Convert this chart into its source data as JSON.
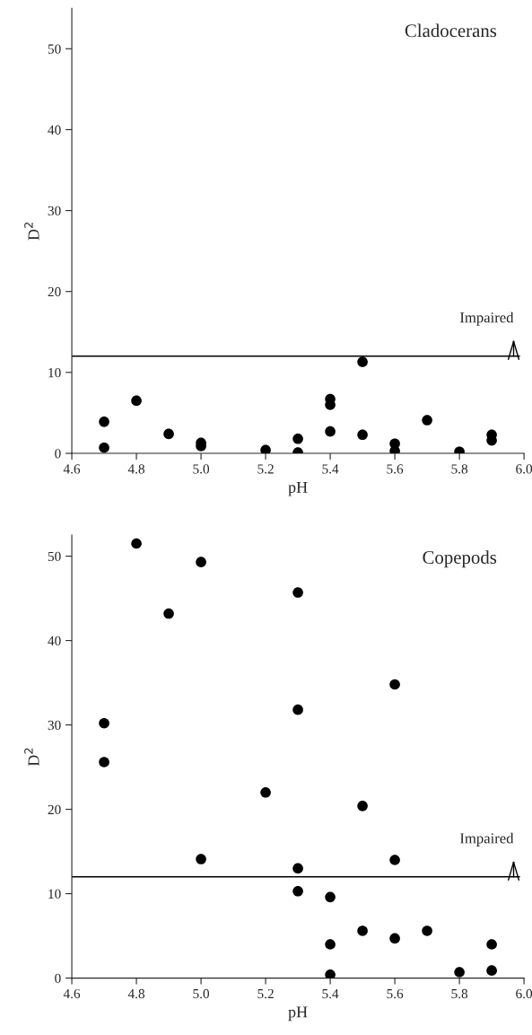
{
  "chart_data": [
    {
      "type": "scatter",
      "title": "Cladocerans",
      "xlabel": "pH",
      "ylabel": "D$^{2}$",
      "xlim": [
        4.6,
        6.0
      ],
      "xticks": [
        {
          "value": 4.6,
          "label": "4.6"
        },
        {
          "value": 4.8,
          "label": "4.8"
        },
        {
          "value": 5.0,
          "label": "5.0"
        },
        {
          "value": 5.2,
          "label": "5.2"
        },
        {
          "value": 5.4,
          "label": "5.4"
        },
        {
          "value": 5.6,
          "label": "5.6"
        },
        {
          "value": 5.8,
          "label": "5.8"
        },
        {
          "value": 6.0,
          "label": "6.0"
        }
      ],
      "ylim": [
        0,
        55
      ],
      "yticks": [
        0,
        10,
        20,
        30,
        40,
        50
      ],
      "marker": "circle",
      "grid": false,
      "legend": false,
      "series": [
        {
          "color": "#000000",
          "x": [
            4.7,
            4.7,
            4.8,
            4.9,
            5.0,
            5.0,
            5.2,
            5.3,
            5.3,
            5.4,
            5.4,
            5.4,
            5.5,
            5.5,
            5.6,
            5.6,
            5.7,
            5.8,
            5.9,
            5.9
          ],
          "values": [
            3.9,
            0.7,
            6.5,
            2.4,
            1.3,
            0.9,
            0.4,
            1.8,
            0.1,
            6.7,
            6.0,
            2.7,
            11.3,
            2.3,
            1.2,
            0.3,
            4.1,
            0.2,
            2.3,
            1.6
          ]
        }
      ],
      "ref_lines": [
        {
          "axis": "y",
          "value": 12,
          "label": "Impaired",
          "color": "#000000",
          "line_style": "solid"
        }
      ]
    },
    {
      "type": "scatter",
      "title": "Copepods",
      "xlabel": "pH",
      "ylabel": "D$^{2}$",
      "xlim": [
        4.6,
        6.0
      ],
      "xticks": [
        {
          "value": 4.6,
          "label": "4.6"
        },
        {
          "value": 4.8,
          "label": "4.8"
        },
        {
          "value": 5.0,
          "label": "5.0"
        },
        {
          "value": 5.2,
          "label": "5.2"
        },
        {
          "value": 5.4,
          "label": "5.4"
        },
        {
          "value": 5.6,
          "label": "5.6"
        },
        {
          "value": 5.8,
          "label": "5.8"
        },
        {
          "value": 6.0,
          "label": "6.0"
        }
      ],
      "ylim": [
        0,
        52.5
      ],
      "yticks": [
        0,
        10,
        20,
        30,
        40,
        50
      ],
      "marker": "circle",
      "grid": false,
      "legend": false,
      "series": [
        {
          "color": "#000000",
          "x": [
            4.7,
            4.7,
            4.8,
            4.9,
            5.0,
            5.0,
            5.2,
            5.3,
            5.3,
            5.3,
            5.3,
            5.4,
            5.4,
            5.4,
            5.5,
            5.5,
            5.6,
            5.6,
            5.6,
            5.7,
            5.8,
            5.9,
            5.9
          ],
          "values": [
            30.2,
            25.6,
            51.5,
            43.2,
            49.3,
            14.1,
            22.0,
            45.7,
            31.8,
            13.0,
            10.3,
            9.6,
            4.0,
            0.4,
            20.4,
            5.6,
            34.8,
            14.0,
            4.7,
            5.6,
            0.7,
            4.0,
            0.9
          ]
        }
      ],
      "ref_lines": [
        {
          "axis": "y",
          "value": 12,
          "label": "Impaired",
          "color": "#000000",
          "line_style": "solid"
        }
      ]
    }
  ]
}
